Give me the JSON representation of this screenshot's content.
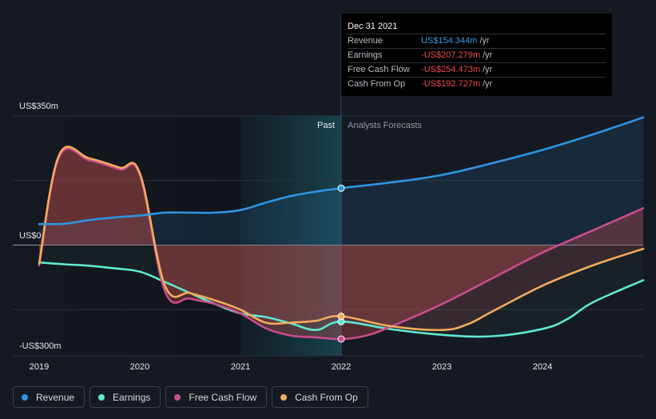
{
  "colors": {
    "revenue": "#2e94e0",
    "earnings": "#5ee8cf",
    "fcf": "#c94c8b",
    "cfo": "#f2ab5c",
    "negative_value": "#ef4a4a",
    "positive_value": "#3b9be6"
  },
  "tooltip": {
    "date": "Dec 31 2021",
    "rows": [
      {
        "label": "Revenue",
        "value": "US$154.344m",
        "unit": "/yr",
        "kind": "positive"
      },
      {
        "label": "Earnings",
        "value": "-US$207.279m",
        "unit": "/yr",
        "kind": "negative"
      },
      {
        "label": "Free Cash Flow",
        "value": "-US$254.473m",
        "unit": "/yr",
        "kind": "negative"
      },
      {
        "label": "Cash From Op",
        "value": "-US$192.727m",
        "unit": "/yr",
        "kind": "negative"
      }
    ]
  },
  "legend": [
    {
      "label": "Revenue",
      "key": "revenue"
    },
    {
      "label": "Earnings",
      "key": "earnings"
    },
    {
      "label": "Free Cash Flow",
      "key": "fcf"
    },
    {
      "label": "Cash From Op",
      "key": "cfo"
    }
  ],
  "chart_data": {
    "type": "line",
    "title": "",
    "past_label": "Past",
    "forecast_label": "Analysts Forecasts",
    "divider_x": 2022.0,
    "x_range": [
      2019.0,
      2025.0
    ],
    "ylim": [
      -300,
      350
    ],
    "y_tick_labels": [
      {
        "value": 350,
        "label": "US$350m"
      },
      {
        "value": 0,
        "label": "US$0"
      },
      {
        "value": -300,
        "label": "-US$300m"
      }
    ],
    "x_tick_labels": [
      {
        "value": 2019,
        "label": "2019"
      },
      {
        "value": 2020,
        "label": "2020"
      },
      {
        "value": 2021,
        "label": "2021"
      },
      {
        "value": 2022,
        "label": "2022"
      },
      {
        "value": 2023,
        "label": "2023"
      },
      {
        "value": 2024,
        "label": "2024"
      }
    ],
    "highlight_x": 2022.0,
    "series": [
      {
        "name": "Revenue",
        "key": "revenue",
        "points": [
          [
            2019.0,
            57
          ],
          [
            2019.25,
            58
          ],
          [
            2019.5,
            68
          ],
          [
            2019.75,
            75
          ],
          [
            2020.0,
            80
          ],
          [
            2020.25,
            88
          ],
          [
            2020.5,
            88
          ],
          [
            2020.75,
            88
          ],
          [
            2021.0,
            95
          ],
          [
            2021.25,
            115
          ],
          [
            2021.5,
            133
          ],
          [
            2021.75,
            145
          ],
          [
            2022.0,
            154.3
          ],
          [
            2022.5,
            170
          ],
          [
            2023.0,
            190
          ],
          [
            2023.5,
            222
          ],
          [
            2024.0,
            258
          ],
          [
            2024.5,
            300
          ],
          [
            2025.0,
            346
          ]
        ]
      },
      {
        "name": "Earnings",
        "key": "earnings",
        "points": [
          [
            2019.0,
            -47
          ],
          [
            2019.25,
            -52
          ],
          [
            2019.5,
            -56
          ],
          [
            2019.75,
            -63
          ],
          [
            2020.0,
            -72
          ],
          [
            2020.25,
            -100
          ],
          [
            2020.5,
            -130
          ],
          [
            2020.75,
            -160
          ],
          [
            2021.0,
            -185
          ],
          [
            2021.25,
            -195
          ],
          [
            2021.5,
            -212
          ],
          [
            2021.75,
            -230
          ],
          [
            2022.0,
            -207.3
          ],
          [
            2022.5,
            -228
          ],
          [
            2023.0,
            -243
          ],
          [
            2023.5,
            -247
          ],
          [
            2024.0,
            -227
          ],
          [
            2024.25,
            -200
          ],
          [
            2024.5,
            -155
          ],
          [
            2025.0,
            -95
          ]
        ]
      },
      {
        "name": "Free Cash Flow",
        "key": "fcf",
        "points": [
          [
            2019.0,
            -55
          ],
          [
            2019.2,
            240
          ],
          [
            2019.5,
            230
          ],
          [
            2019.8,
            205
          ],
          [
            2020.0,
            190
          ],
          [
            2020.25,
            -125
          ],
          [
            2020.5,
            -145
          ],
          [
            2020.75,
            -160
          ],
          [
            2021.0,
            -185
          ],
          [
            2021.25,
            -225
          ],
          [
            2021.5,
            -245
          ],
          [
            2021.75,
            -250
          ],
          [
            2022.0,
            -254.5
          ],
          [
            2022.25,
            -245
          ],
          [
            2022.5,
            -220
          ],
          [
            2023.0,
            -160
          ],
          [
            2023.5,
            -90
          ],
          [
            2024.0,
            -20
          ],
          [
            2024.5,
            40
          ],
          [
            2025.0,
            100
          ]
        ]
      },
      {
        "name": "Cash From Op",
        "key": "cfo",
        "points": [
          [
            2019.0,
            -50
          ],
          [
            2019.2,
            245
          ],
          [
            2019.5,
            235
          ],
          [
            2019.8,
            210
          ],
          [
            2020.0,
            195
          ],
          [
            2020.25,
            -110
          ],
          [
            2020.5,
            -130
          ],
          [
            2020.75,
            -150
          ],
          [
            2021.0,
            -175
          ],
          [
            2021.25,
            -210
          ],
          [
            2021.5,
            -210
          ],
          [
            2021.75,
            -205
          ],
          [
            2022.0,
            -192.7
          ],
          [
            2022.5,
            -220
          ],
          [
            2023.0,
            -230
          ],
          [
            2023.25,
            -215
          ],
          [
            2023.5,
            -180
          ],
          [
            2024.0,
            -110
          ],
          [
            2024.5,
            -55
          ],
          [
            2025.0,
            -10
          ]
        ]
      }
    ]
  }
}
